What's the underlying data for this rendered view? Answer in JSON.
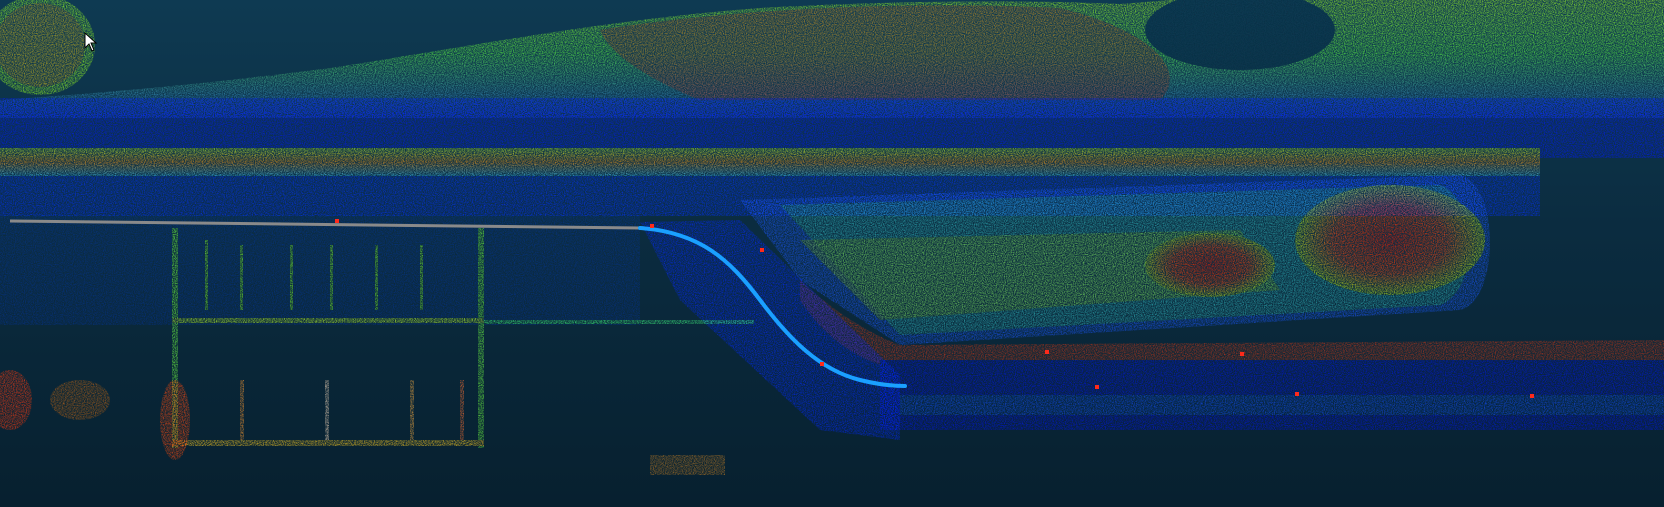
{
  "view": {
    "background_color": "#0b2c40",
    "color_ramp": [
      "#0010ff",
      "#1060ff",
      "#00c8ff",
      "#40ff80",
      "#b0ff20",
      "#ffe000",
      "#ff8000",
      "#ff1a00"
    ],
    "trajectory_color": "#1aa0ff",
    "planned_path_color": "#8a8a8a",
    "marker_color": "#ff2a1a",
    "cursor_icon": "arrow-cursor-icon"
  }
}
